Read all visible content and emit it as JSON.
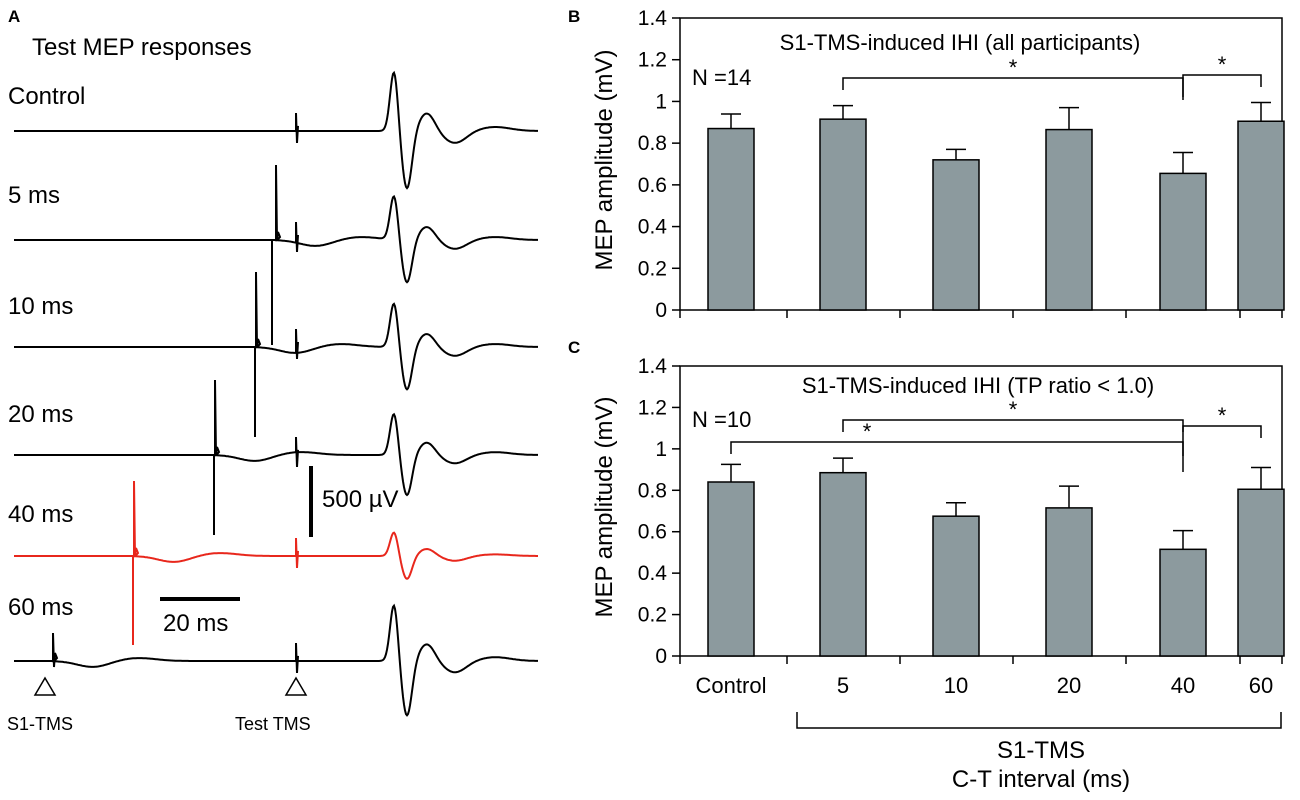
{
  "panel_a": {
    "letter": "A",
    "title": "Test MEP responses",
    "traces": [
      {
        "label": "Control",
        "conditioning_ms": null,
        "mep_scale": 1.0,
        "highlight": false
      },
      {
        "label": "5 ms",
        "conditioning_ms": 5,
        "mep_scale": 0.74,
        "highlight": false
      },
      {
        "label": "10 ms",
        "conditioning_ms": 10,
        "mep_scale": 0.74,
        "highlight": false
      },
      {
        "label": "20 ms",
        "conditioning_ms": 20,
        "mep_scale": 0.7,
        "highlight": false
      },
      {
        "label": "40 ms",
        "conditioning_ms": 40,
        "mep_scale": 0.4,
        "highlight": true
      },
      {
        "label": "60 ms",
        "conditioning_ms": 60,
        "mep_scale": 0.95,
        "highlight": false
      }
    ],
    "voltage_scale_label": "500 µV",
    "time_scale_label": "20 ms",
    "marker_s1": "S1-TMS",
    "marker_test": "Test TMS",
    "highlight_color": "#e8271c",
    "trace_color": "#000000"
  },
  "chart_data": [
    {
      "type": "bar",
      "panel": "B",
      "title": "S1-TMS-induced IHI (all participants)",
      "n_label": "N =14",
      "categories": [
        "Control",
        "5",
        "10",
        "20",
        "40",
        "60"
      ],
      "values": [
        0.87,
        0.915,
        0.72,
        0.865,
        0.655,
        0.905
      ],
      "errors": [
        0.07,
        0.065,
        0.05,
        0.105,
        0.1,
        0.09
      ],
      "ylabel": "MEP amplitude (mV)",
      "ylim": [
        0,
        1.4
      ],
      "yticks": [
        "0",
        "0.2",
        "0.4",
        "0.6",
        "0.8",
        "1",
        "1.2",
        "1.4"
      ],
      "significance": [
        {
          "from": "5",
          "to": "40",
          "label": "*"
        },
        {
          "from": "40",
          "to": "60",
          "label": "*"
        }
      ],
      "bar_color": "#8c9a9e"
    },
    {
      "type": "bar",
      "panel": "C",
      "title": "S1-TMS-induced IHI (TP ratio < 1.0)",
      "n_label": "N =10",
      "categories": [
        "Control",
        "5",
        "10",
        "20",
        "40",
        "60"
      ],
      "values": [
        0.84,
        0.885,
        0.675,
        0.715,
        0.515,
        0.805
      ],
      "errors": [
        0.085,
        0.07,
        0.065,
        0.105,
        0.09,
        0.105
      ],
      "ylabel": "MEP amplitude (mV)",
      "ylim": [
        0,
        1.4
      ],
      "yticks": [
        "0",
        "0.2",
        "0.4",
        "0.6",
        "0.8",
        "1",
        "1.2",
        "1.4"
      ],
      "significance": [
        {
          "from": "5",
          "to": "40",
          "label": "*"
        },
        {
          "from": "Control",
          "to": "40",
          "label": "*"
        },
        {
          "from": "40",
          "to": "60",
          "label": "*"
        }
      ],
      "xaxis_group_label_1": "S1-TMS",
      "xaxis_group_label_2": "C-T interval (ms)",
      "bar_color": "#8c9a9e"
    }
  ]
}
